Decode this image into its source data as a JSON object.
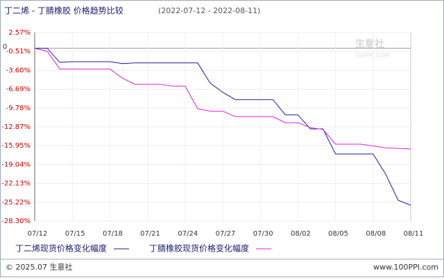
{
  "chart_data": {
    "type": "line",
    "title": "丁二烯 - 丁腈橡胶 价格趋势比较",
    "subtitle": "(2022-07-12 - 2022-08-11)",
    "categories": [
      "07/12",
      null,
      null,
      "07/15",
      null,
      null,
      "07/18",
      null,
      null,
      "07/21",
      null,
      null,
      "07/24",
      null,
      null,
      "07/27",
      null,
      null,
      "07/30",
      null,
      null,
      "08/02",
      null,
      null,
      "08/05",
      null,
      null,
      "08/08",
      null,
      null,
      "08/11"
    ],
    "series": [
      {
        "name": "丁二烯现货价格变化幅度",
        "color": "#1a1aa0",
        "values": [
          0,
          0,
          -2.3,
          -2.2,
          -2.2,
          -2.2,
          -2.2,
          -2.5,
          -2.4,
          -2.4,
          -2.4,
          -2.4,
          -2.4,
          -2.4,
          -5.7,
          -7.2,
          -8.4,
          -8.4,
          -8.4,
          -8.4,
          -10.9,
          -10.9,
          -13.2,
          -13.2,
          -17.3,
          -17.3,
          -17.3,
          -17.3,
          -20.6,
          -24.9,
          -25.7
        ]
      },
      {
        "name": "丁腈橡胶现货价格变化幅度",
        "color": "#e020d0",
        "values": [
          0,
          -0.5,
          -3.4,
          -3.4,
          -3.4,
          -3.4,
          -3.4,
          -4.9,
          -5.9,
          -5.9,
          -5.9,
          -6.2,
          -6.2,
          -9.9,
          -10.3,
          -10.3,
          -11.2,
          -11.2,
          -11.2,
          -11.2,
          -12.2,
          -12.2,
          -13.0,
          -13.3,
          -15.7,
          -15.7,
          -15.7,
          -16.0,
          -16.3,
          -16.4,
          -16.5
        ]
      }
    ],
    "ylim": [
      -28.3,
      2.57
    ],
    "yticks": [
      {
        "value": 2.57,
        "label": "2.57%"
      },
      0,
      {
        "value": -0.51,
        "label": "-0.51%"
      },
      {
        "value": -3.6,
        "label": "-3.60%"
      },
      {
        "value": -6.69,
        "label": "-6.69%"
      },
      {
        "value": -9.78,
        "label": "-9.78%"
      },
      {
        "value": -12.87,
        "label": "-12.87%"
      },
      {
        "value": -15.95,
        "label": "-15.95%"
      },
      {
        "value": -19.04,
        "label": "-19.04%"
      },
      {
        "value": -22.13,
        "label": "-22.13%"
      },
      {
        "value": -25.22,
        "label": "-25.22%"
      },
      {
        "value": -28.3,
        "label": "-28.30%"
      }
    ],
    "grid": true,
    "watermark": "生意社",
    "watermark_url": "100PPI.COM",
    "footer_left": "© 2025.07 生意社",
    "footer_right": "www.100PPI.com"
  }
}
